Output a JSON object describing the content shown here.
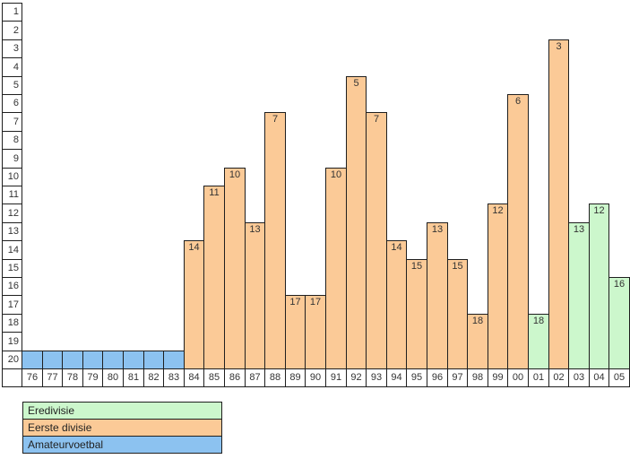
{
  "chart_data": {
    "type": "bar",
    "title": "",
    "xlabel": "",
    "ylabel": "",
    "y_axis": {
      "ticks": [
        1,
        2,
        3,
        4,
        5,
        6,
        7,
        8,
        9,
        10,
        11,
        12,
        13,
        14,
        15,
        16,
        17,
        18,
        19,
        20
      ],
      "min": 1,
      "max": 20,
      "inverted": true
    },
    "x_categories": [
      "76",
      "77",
      "78",
      "79",
      "80",
      "81",
      "82",
      "83",
      "84",
      "85",
      "86",
      "87",
      "88",
      "89",
      "90",
      "91",
      "92",
      "93",
      "94",
      "95",
      "96",
      "97",
      "98",
      "99",
      "00",
      "01",
      "02",
      "03",
      "04",
      "05"
    ],
    "bars": [
      {
        "year": "76",
        "division": "Amateurvoetbal",
        "position": null
      },
      {
        "year": "77",
        "division": "Amateurvoetbal",
        "position": null
      },
      {
        "year": "78",
        "division": "Amateurvoetbal",
        "position": null
      },
      {
        "year": "79",
        "division": "Amateurvoetbal",
        "position": null
      },
      {
        "year": "80",
        "division": "Amateurvoetbal",
        "position": null
      },
      {
        "year": "81",
        "division": "Amateurvoetbal",
        "position": null
      },
      {
        "year": "82",
        "division": "Amateurvoetbal",
        "position": null
      },
      {
        "year": "83",
        "division": "Amateurvoetbal",
        "position": null
      },
      {
        "year": "84",
        "division": "Eerste divisie",
        "position": 14
      },
      {
        "year": "85",
        "division": "Eerste divisie",
        "position": 11
      },
      {
        "year": "86",
        "division": "Eerste divisie",
        "position": 10
      },
      {
        "year": "87",
        "division": "Eerste divisie",
        "position": 13
      },
      {
        "year": "88",
        "division": "Eerste divisie",
        "position": 7
      },
      {
        "year": "89",
        "division": "Eerste divisie",
        "position": 17
      },
      {
        "year": "90",
        "division": "Eerste divisie",
        "position": 17
      },
      {
        "year": "91",
        "division": "Eerste divisie",
        "position": 10
      },
      {
        "year": "92",
        "division": "Eerste divisie",
        "position": 5
      },
      {
        "year": "93",
        "division": "Eerste divisie",
        "position": 7
      },
      {
        "year": "94",
        "division": "Eerste divisie",
        "position": 14
      },
      {
        "year": "95",
        "division": "Eerste divisie",
        "position": 15
      },
      {
        "year": "96",
        "division": "Eerste divisie",
        "position": 13
      },
      {
        "year": "97",
        "division": "Eerste divisie",
        "position": 15
      },
      {
        "year": "98",
        "division": "Eerste divisie",
        "position": 18
      },
      {
        "year": "99",
        "division": "Eerste divisie",
        "position": 12
      },
      {
        "year": "00",
        "division": "Eerste divisie",
        "position": 6
      },
      {
        "year": "01",
        "division": "Eredivisie",
        "position": 18
      },
      {
        "year": "02",
        "division": "Eerste divisie",
        "position": 3
      },
      {
        "year": "03",
        "division": "Eredivisie",
        "position": 13
      },
      {
        "year": "04",
        "division": "Eredivisie",
        "position": 12
      },
      {
        "year": "05",
        "division": "Eredivisie",
        "position": 16
      }
    ],
    "division_colors": {
      "Eredivisie": "#ccf7cc",
      "Eerste divisie": "#fbca97",
      "Amateurvoetbal": "#8cc2f0"
    },
    "grid": false,
    "legend_position": "bottom-left"
  },
  "legend": {
    "items": [
      {
        "label": "Eredivisie",
        "color": "#ccf7cc"
      },
      {
        "label": "Eerste divisie",
        "color": "#fbca97"
      },
      {
        "label": "Amateurvoetbal",
        "color": "#8cc2f0"
      }
    ]
  },
  "colors": {
    "background": "#ffffff",
    "border": "#1f1f1f",
    "text": "#333333"
  }
}
